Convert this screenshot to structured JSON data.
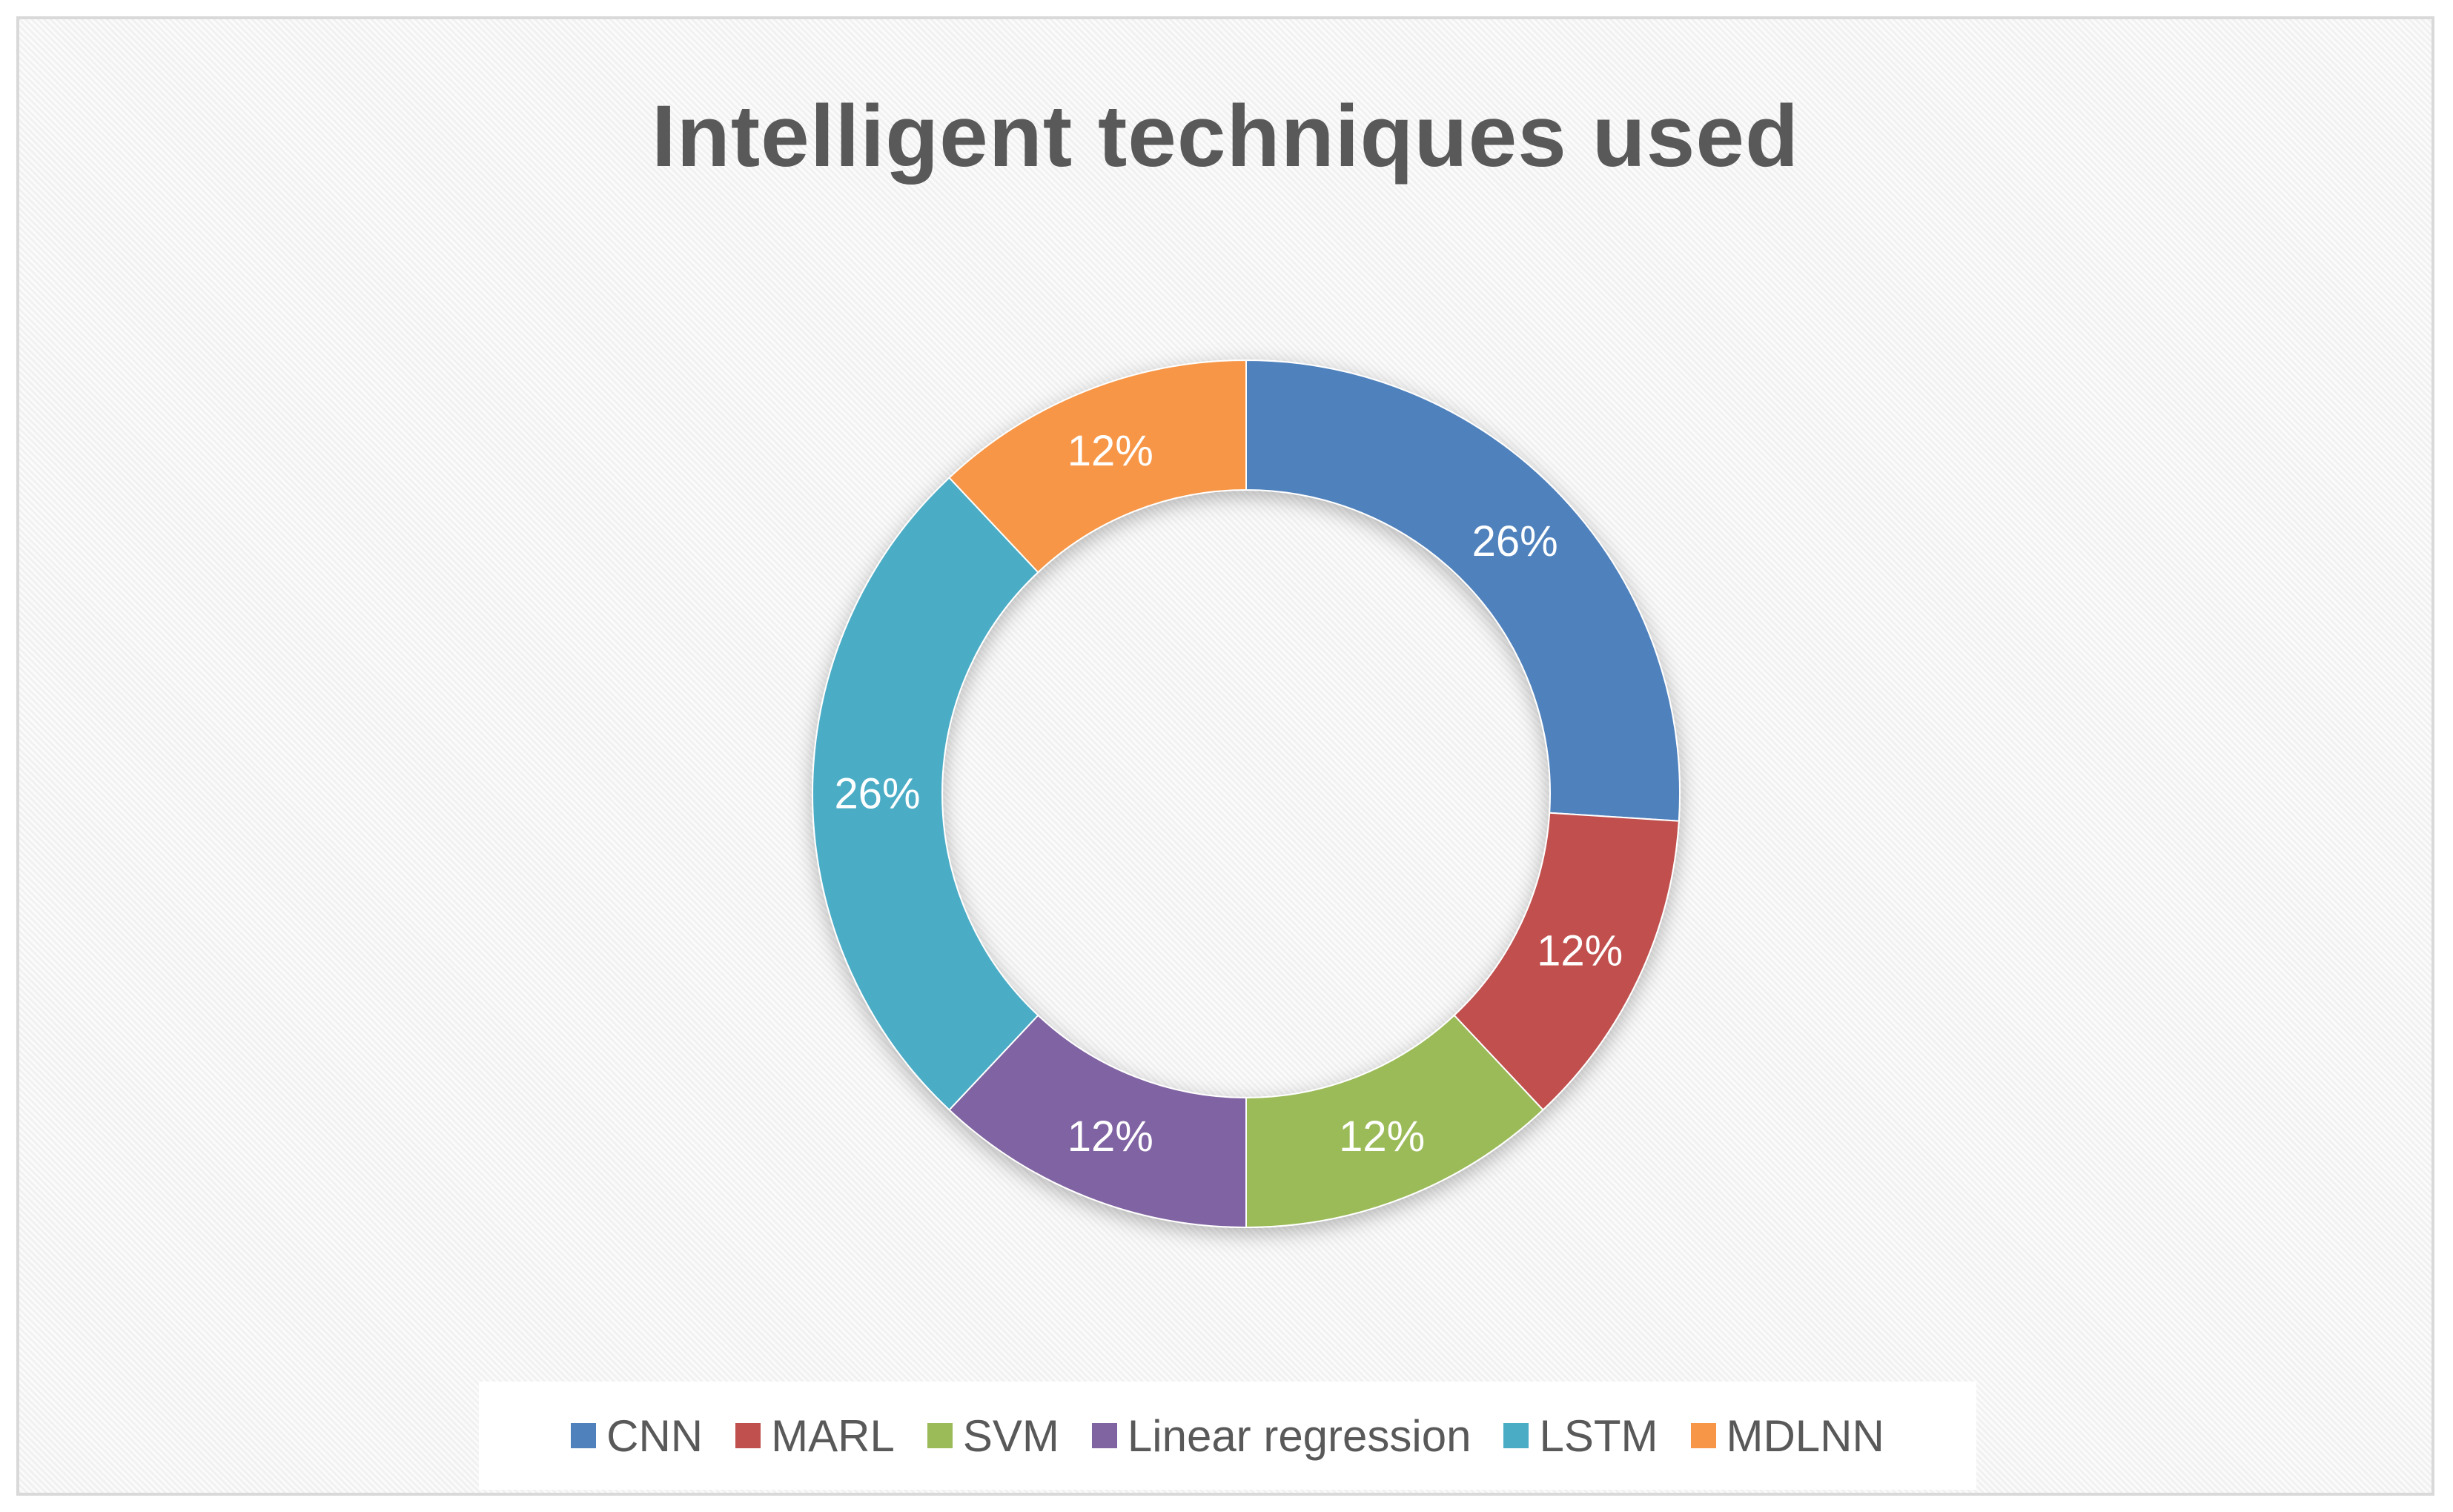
{
  "chart_data": {
    "type": "pie",
    "variant": "donut",
    "title": "Intelligent techniques used",
    "categories": [
      "CNN",
      "MARL",
      "SVM",
      "Linear regression",
      "LSTM",
      "MDLNN"
    ],
    "values": [
      26,
      12,
      12,
      12,
      26,
      12
    ],
    "labels": [
      "26%",
      "12%",
      "12%",
      "12%",
      "26%",
      "12%"
    ],
    "colors": [
      "#4F81BD",
      "#C0504D",
      "#9BBB59",
      "#8064A2",
      "#4BACC6",
      "#F79646"
    ],
    "legend_position": "bottom",
    "grid": false
  }
}
